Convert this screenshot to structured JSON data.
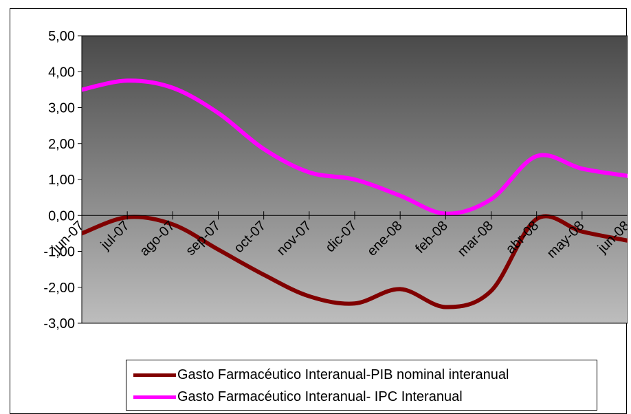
{
  "chart_data": {
    "type": "line",
    "categories": [
      "jun-07",
      "jul-07",
      "ago-07",
      "sep-07",
      "oct-07",
      "nov-07",
      "dic-07",
      "ene-08",
      "feb-08",
      "mar-08",
      "abr-08",
      "may-08",
      "jun-08"
    ],
    "series": [
      {
        "name": "Gasto Farmacéutico Interanual-PIB nominal interanual",
        "color": "#800000",
        "values": [
          -0.5,
          -0.05,
          -0.25,
          -0.95,
          -1.65,
          -2.25,
          -2.45,
          -2.05,
          -2.55,
          -2.1,
          -0.1,
          -0.45,
          -0.7
        ]
      },
      {
        "name": "Gasto Farmacéutico Interanual- IPC Interanual",
        "color": "#ff00ff",
        "values": [
          3.5,
          3.75,
          3.55,
          2.85,
          1.85,
          1.2,
          1.0,
          0.55,
          0.05,
          0.45,
          1.65,
          1.3,
          1.1
        ]
      }
    ],
    "y_tick_labels": [
      "5,00",
      "4,00",
      "3,00",
      "2,00",
      "1,00",
      "0,00",
      "-1,00",
      "-2,00",
      "-3,00"
    ],
    "ylim": [
      -3,
      5
    ],
    "grid": false,
    "legend_position": "bottom"
  }
}
